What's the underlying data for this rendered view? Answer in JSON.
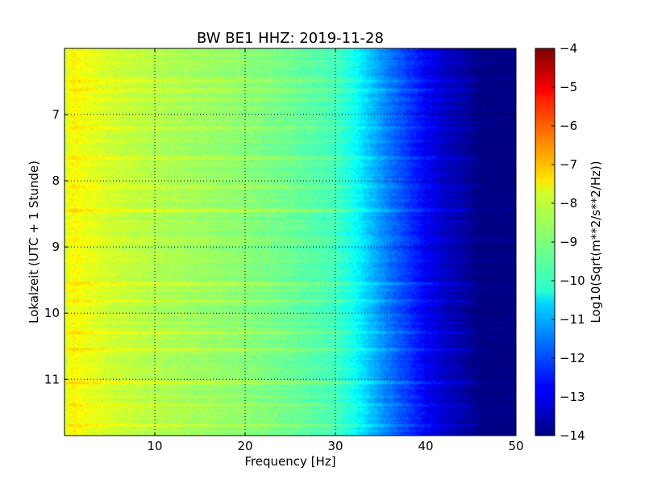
{
  "chart_data": {
    "type": "heatmap",
    "title": "BW BE1 HHZ: 2019-11-28",
    "xlabel": "Frequency [Hz]",
    "ylabel": "Lokalzeit (UTC + 1 Stunde)",
    "xlim": [
      0,
      50
    ],
    "ylim": [
      11.85,
      6.0
    ],
    "x_ticks": [
      10,
      20,
      30,
      40,
      50
    ],
    "x_tick_labels": [
      "10",
      "20",
      "30",
      "40",
      "50"
    ],
    "y_ticks": [
      7,
      8,
      9,
      10,
      11
    ],
    "y_tick_labels": [
      "7",
      "8",
      "9",
      "10",
      "11"
    ],
    "grid": true,
    "colormap": "jet",
    "colorbar": {
      "label": "Log10(Sqrt(m**2/s**2/Hz))",
      "range": [
        -14,
        -4
      ],
      "ticks": [
        -4,
        -5,
        -6,
        -7,
        -8,
        -9,
        -10,
        -11,
        -12,
        -13,
        -14
      ],
      "tick_labels": [
        "−4",
        "−5",
        "−6",
        "−7",
        "−8",
        "−9",
        "−10",
        "−11",
        "−12",
        "−13",
        "−14"
      ]
    },
    "spectral_profile": {
      "frequency_hz": [
        0,
        1,
        2,
        5,
        10,
        15,
        20,
        25,
        30,
        32,
        34,
        36,
        38,
        40,
        42,
        44,
        45,
        46,
        50
      ],
      "log10_amplitude": [
        -8.2,
        -7.7,
        -7.9,
        -8.2,
        -8.5,
        -8.7,
        -8.9,
        -9.2,
        -9.6,
        -10.1,
        -10.9,
        -11.6,
        -12.2,
        -12.8,
        -13.3,
        -13.6,
        -13.8,
        -14,
        -14
      ]
    },
    "bright_bands_hours": [
      6.5,
      6.62,
      6.78,
      7.2,
      7.65,
      8.1,
      8.45,
      9.55,
      9.82,
      10.3,
      10.55,
      11.05,
      11.38,
      11.7
    ]
  }
}
